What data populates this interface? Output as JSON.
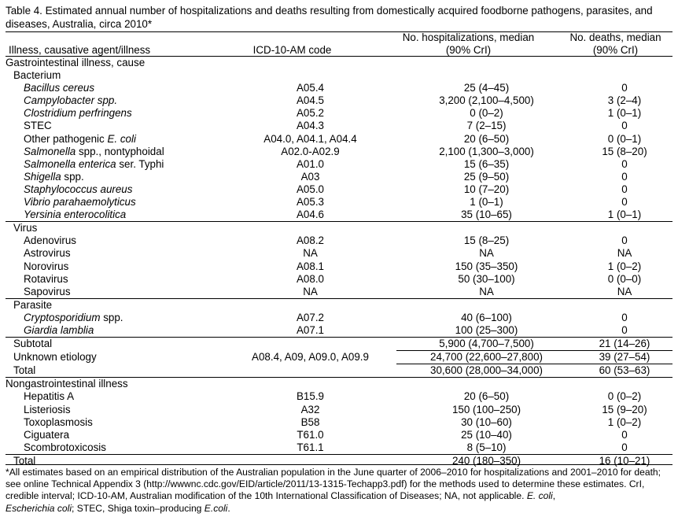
{
  "caption": "Table 4. Estimated annual number of hospitalizations and deaths resulting from domestically acquired foodborne pathogens, parasites, and diseases, Australia, circa 2010*",
  "headers": {
    "illness": "Illness, causative agent/illness",
    "icd": "ICD-10-AM code",
    "hosp_line1": "No. hospitalizations, median",
    "hosp_line2": "(90% CrI)",
    "deaths_line1": "No. deaths, median",
    "deaths_line2": "(90% CrI)"
  },
  "rows": [
    {
      "name": "Gastrointestinal illness, cause",
      "icd": "",
      "hosp": "",
      "deaths": ""
    },
    {
      "name": "Bacterium",
      "icd": "",
      "hosp": "",
      "deaths": ""
    },
    {
      "name": "Bacillus cereus",
      "icd": "A05.4",
      "hosp": "25 (4–45)",
      "deaths": "0"
    },
    {
      "name": "Campylobacter spp.",
      "icd": "A04.5",
      "hosp": "3,200 (2,100–4,500)",
      "deaths": "3 (2–4)"
    },
    {
      "name": "Clostridium perfringens",
      "icd": "A05.2",
      "hosp": "0 (0–2)",
      "deaths": "1 (0–1)"
    },
    {
      "name": "STEC",
      "icd": "A04.3",
      "hosp": "7 (2–15)",
      "deaths": "0"
    },
    {
      "name_pre": "Other pathogenic ",
      "name_it": "E. coli",
      "icd": "A04.0, A04.1, A04.4",
      "hosp": "20 (6–50)",
      "deaths": "0 (0–1)"
    },
    {
      "name_it": "Salmonella",
      "name_post": " spp., nontyphoidal",
      "icd": "A02.0-A02.9",
      "hosp": "2,100 (1,300–3,000)",
      "deaths": "15 (8–20)"
    },
    {
      "name_it": "Salmonella enterica",
      "name_post": " ser. Typhi",
      "icd": "A01.0",
      "hosp": "15 (6–35)",
      "deaths": "0"
    },
    {
      "name_it": "Shigella",
      "name_post": " spp.",
      "icd": "A03",
      "hosp": "25 (9–50)",
      "deaths": "0"
    },
    {
      "name": "Staphylococcus aureus",
      "icd": "A05.0",
      "hosp": "10 (7–20)",
      "deaths": "0"
    },
    {
      "name": "Vibrio parahaemolyticus",
      "icd": "A05.3",
      "hosp": "1 (0–1)",
      "deaths": "0"
    },
    {
      "name": "Yersinia enterocolitica",
      "icd": "A04.6",
      "hosp": "35 (10–65)",
      "deaths": "1 (0–1)"
    },
    {
      "name": "Virus",
      "icd": "",
      "hosp": "",
      "deaths": ""
    },
    {
      "name": "Adenovirus",
      "icd": "A08.2",
      "hosp": "15 (8–25)",
      "deaths": "0"
    },
    {
      "name": "Astrovirus",
      "icd": "NA",
      "hosp": "NA",
      "deaths": "NA"
    },
    {
      "name": "Norovirus",
      "icd": "A08.1",
      "hosp": "150 (35–350)",
      "deaths": "1 (0–2)"
    },
    {
      "name": "Rotavirus",
      "icd": "A08.0",
      "hosp": "50 (30–100)",
      "deaths": "0 (0–0)"
    },
    {
      "name": "Sapovirus",
      "icd": "NA",
      "hosp": "NA",
      "deaths": "NA"
    },
    {
      "name": "Parasite",
      "icd": "",
      "hosp": "",
      "deaths": ""
    },
    {
      "name_it": "Cryptosporidium",
      "name_post": " spp.",
      "icd": "A07.2",
      "hosp": "40 (6–100)",
      "deaths": "0"
    },
    {
      "name": "Giardia lamblia",
      "icd": "A07.1",
      "hosp": "100 (25–300)",
      "deaths": "0"
    },
    {
      "name": "Subtotal",
      "icd": "",
      "hosp": "5,900 (4,700–7,500)",
      "deaths": "21 (14–26)"
    },
    {
      "name": "Unknown etiology",
      "icd": "A08.4, A09, A09.0, A09.9",
      "hosp": "24,700 (22,600–27,800)",
      "deaths": "39 (27–54)"
    },
    {
      "name": "Total",
      "icd": "",
      "hosp": "30,600 (28,000–34,000)",
      "deaths": "60 (53–63)"
    },
    {
      "name": "Nongastrointestinal illness",
      "icd": "",
      "hosp": "",
      "deaths": ""
    },
    {
      "name": "Hepatitis A",
      "icd": "B15.9",
      "hosp": "20 (6–50)",
      "deaths": "0 (0–2)"
    },
    {
      "name": "Listeriosis",
      "icd": "A32",
      "hosp": "150 (100–250)",
      "deaths": "15 (9–20)"
    },
    {
      "name": "Toxoplasmosis",
      "icd": "B58",
      "hosp": "30 (10–60)",
      "deaths": "1 (0–2)"
    },
    {
      "name": "Ciguatera",
      "icd": "T61.0",
      "hosp": "25 (10–40)",
      "deaths": "0"
    },
    {
      "name": "Scombrotoxicosis",
      "icd": "T61.1",
      "hosp": "8 (5–10)",
      "deaths": "0"
    },
    {
      "name": "Total",
      "icd": "",
      "hosp": "240 (180–350)",
      "deaths": "16 (10–21)"
    }
  ],
  "footnote": {
    "text1": "*All estimates based on an empirical distribution of the Australian population in the June quarter of 2006–2010 for hospitalizations and 2001–2010 for death; see online Technical Appendix 3 (http://wwwnc.cdc.gov/EID/article/2011/13-1315-Techapp3.pdf) for the methods used to determine these estimates. CrI, credible interval; ICD-10-AM, Australian modification of the 10th International Classification of Diseases; NA, not applicable. ",
    "it1": "E. coli",
    "text2": ",",
    "it2": "Escherichia coli",
    "text3": "; STEC, Shiga toxin–producing ",
    "it3": "E.coli",
    "text4": "."
  }
}
